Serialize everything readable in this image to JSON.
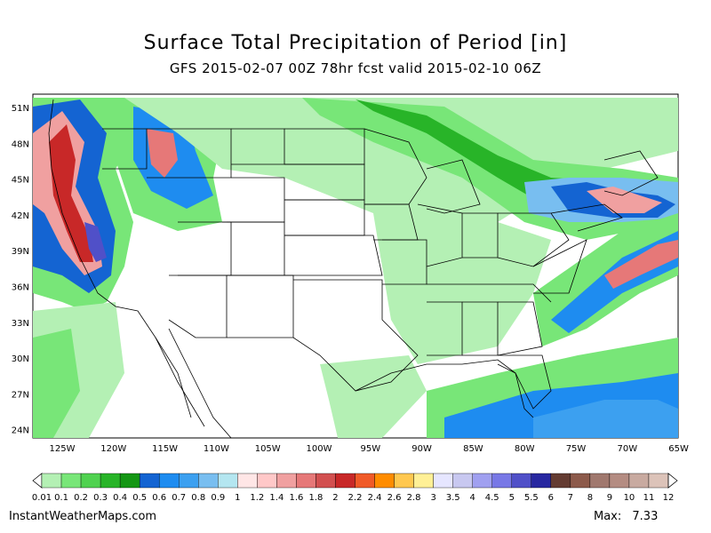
{
  "title": "Surface Total Precipitation of Period [in]",
  "subtitle": "GFS 2015-02-07 00Z 78hr fcst valid 2015-02-10 06Z",
  "lat_labels": [
    "51N",
    "48N",
    "45N",
    "42N",
    "39N",
    "36N",
    "33N",
    "30N",
    "27N",
    "24N"
  ],
  "lon_labels": [
    "125W",
    "120W",
    "115W",
    "110W",
    "105W",
    "100W",
    "95W",
    "90W",
    "85W",
    "80W",
    "75W",
    "70W",
    "65W"
  ],
  "colorbar": {
    "labels": [
      "0.01",
      "0.1",
      "0.2",
      "0.3",
      "0.4",
      "0.5",
      "0.6",
      "0.7",
      "0.8",
      "0.9",
      "1",
      "1.2",
      "1.4",
      "1.6",
      "1.8",
      "2",
      "2.2",
      "2.4",
      "2.6",
      "2.8",
      "3",
      "3.5",
      "4",
      "4.5",
      "5",
      "5.5",
      "6",
      "7",
      "8",
      "9",
      "10",
      "11",
      "12"
    ],
    "colors": [
      "#b4f0b4",
      "#78e678",
      "#50d250",
      "#28b428",
      "#149614",
      "#1464d2",
      "#1e8cf0",
      "#3ca0f0",
      "#78bef0",
      "#b4e6f0",
      "#ffe6e6",
      "#ffc8c8",
      "#f0a0a0",
      "#e67878",
      "#d25050",
      "#c82828",
      "#f05a28",
      "#ff8c00",
      "#ffc850",
      "#fff096",
      "#e6e6ff",
      "#c8c8f0",
      "#a0a0f0",
      "#7878e6",
      "#5050c8",
      "#2828a0",
      "#643c32",
      "#8c5a4b",
      "#a0786e",
      "#b48c82",
      "#c8aaa0",
      "#dcc3b9"
    ]
  },
  "footer": {
    "site": "InstantWeatherMaps.com",
    "max_label": "Max:",
    "max_value": "7.33"
  },
  "map_colors": {
    "light": "#b4f0b4",
    "mid": "#78e678",
    "green": "#28b428",
    "blue": "#1464d2",
    "lightblue": "#78bef0",
    "pink": "#f0a0a0",
    "red": "#c82828",
    "purple": "#5050c8"
  }
}
